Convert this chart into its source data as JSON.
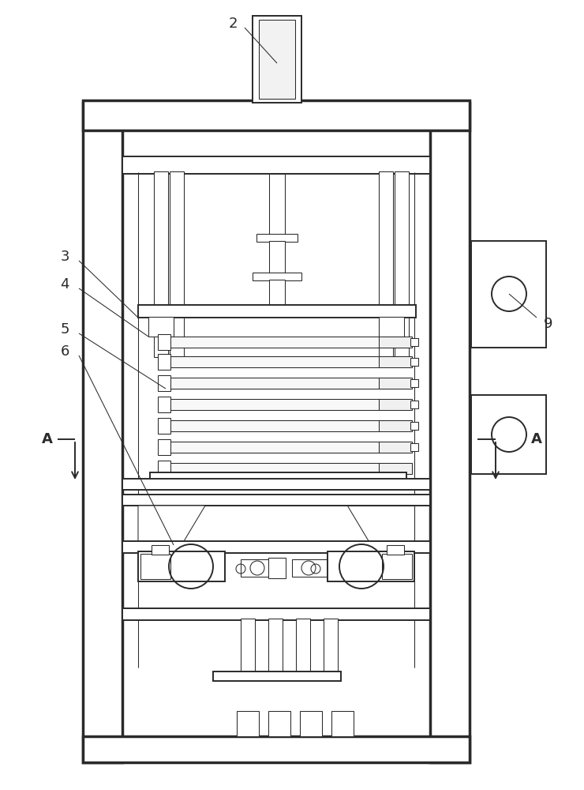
{
  "bg_color": "#ffffff",
  "lc": "#2a2a2a",
  "figsize": [
    7.4,
    10.0
  ],
  "dpi": 100,
  "lw_thick": 2.5,
  "lw_main": 1.4,
  "lw_thin": 0.75,
  "lw_xtra": 0.5,
  "fs_label": 13
}
